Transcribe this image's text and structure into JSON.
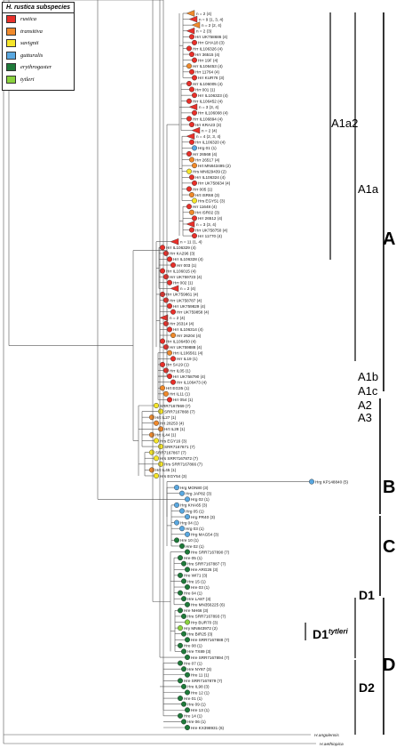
{
  "legend": {
    "title": "H. rustica subspecies",
    "items": [
      {
        "label": "rustica",
        "color": "#e8302a"
      },
      {
        "label": "transitiva",
        "color": "#f08a2c"
      },
      {
        "label": "savignii",
        "color": "#f5e52a"
      },
      {
        "label": "gutturalis",
        "color": "#5aa8e0"
      },
      {
        "label": "erythrogaster",
        "color": "#1e7a3a"
      },
      {
        "label": "tytleri",
        "color": "#8ad23e"
      }
    ]
  },
  "clades": {
    "A": "A",
    "B": "B",
    "C": "C",
    "D": "D",
    "A1a2": "A1a2",
    "A1a": "A1a",
    "A1b": "A1b",
    "A1c": "A1c",
    "A2": "A2",
    "A3": "A3",
    "D1": "D1",
    "D2": "D2",
    "D1t_main": "D1",
    "D1t_sup": "tytleri"
  },
  "outgroups": [
    "H.angolensis",
    "H.aethiopica"
  ],
  "collapsed": [
    "n = 2 (4)",
    "n = 9 (1, 3, 4)",
    "n = 2 (2, 4)",
    "n = 4 (2, 3, 4)",
    "n = 11 (1, 4)"
  ],
  "tips": [
    {
      "label": "n = 2 (4)",
      "c": 1
    },
    {
      "label": "n = 9 (1, 3, 4)",
      "c": 0
    },
    {
      "label": "n = 2 (2, 4)",
      "c": 1
    },
    {
      "label": "n = 2 (3)",
      "c": 0
    },
    {
      "label": "Hrr UK758686 (4)",
      "c": 0
    },
    {
      "label": "Hrr GHA18 (3)",
      "c": 0
    },
    {
      "label": "Hrr IL106326 (4)",
      "c": 0
    },
    {
      "label": "Hrr 36515 (4)",
      "c": 0
    },
    {
      "label": "Hrr 19F (4)",
      "c": 0
    },
    {
      "label": "Hrr IL106453 (4)",
      "c": 1
    },
    {
      "label": "Hrr 11764 (4)",
      "c": 0
    },
    {
      "label": "Hrr KUR76 (3)",
      "c": 0
    },
    {
      "label": "Hrr IL106005 (4)",
      "c": 0
    },
    {
      "label": "Hrr 001 (1)",
      "c": 0
    },
    {
      "label": "Hrr IL106323 (4)",
      "c": 0
    },
    {
      "label": "Hrr IL106452 (4)",
      "c": 0
    },
    {
      "label": "n = 3 (3, 4)",
      "c": 0
    },
    {
      "label": "Hrr IL106008 (4)",
      "c": 0
    },
    {
      "label": "Hrr IL106894 (4)",
      "c": 0
    },
    {
      "label": "Hrr KRA23 (3)",
      "c": 0
    },
    {
      "label": "n = 2 (4)",
      "c": 0
    },
    {
      "label": "n = 4 (2, 3, 4)",
      "c": 0
    },
    {
      "label": "Hrr IL106320 (4)",
      "c": 0
    },
    {
      "label": "Hrg 01 (1)",
      "c": 3
    },
    {
      "label": "Hrr 26568 (4)",
      "c": 0
    },
    {
      "label": "Hrr 26517 (4)",
      "c": 1
    },
    {
      "label": "Hrt MN843495 (2)",
      "c": 1
    },
    {
      "label": "Hrs MN629439 (2)",
      "c": 2
    },
    {
      "label": "Hrr IL106324 (4)",
      "c": 0
    },
    {
      "label": "Hrr UK758634 (4)",
      "c": 0
    },
    {
      "label": "Hrr 005 (1)",
      "c": 0
    },
    {
      "label": "Hrt ISR68 (3)",
      "c": 1
    },
    {
      "label": "Hrs EGY51 (3)",
      "c": 2
    },
    {
      "label": "Hrr 11648 (4)",
      "c": 0
    },
    {
      "label": "Hrt ISR02 (3)",
      "c": 1
    },
    {
      "label": "Hrr 26512 (4)",
      "c": 0
    },
    {
      "label": "n = 3 (3, 4)",
      "c": 0
    },
    {
      "label": "Hrr UK758750 (4)",
      "c": 0
    },
    {
      "label": "Hrr 11770 (4)",
      "c": 0
    },
    {
      "label": "n = 11 (1, 4)",
      "c": 0
    },
    {
      "label": "Hrr IL106329 (4)",
      "c": 0
    },
    {
      "label": "Hrr KA296 (3)",
      "c": 0
    },
    {
      "label": "Hrr IL106328 (4)",
      "c": 0
    },
    {
      "label": "Hrr 003 (1)",
      "c": 0
    },
    {
      "label": "Hrr IL106015 (4)",
      "c": 0
    },
    {
      "label": "Hrr UK759723 (4)",
      "c": 0
    },
    {
      "label": "Hrr 002 (1)",
      "c": 0
    },
    {
      "label": "n = 2 (4)",
      "c": 0
    },
    {
      "label": "Hrr UK759861 (4)",
      "c": 0
    },
    {
      "label": "Hrr UK758787 (4)",
      "c": 0
    },
    {
      "label": "Hrr UK759829 (4)",
      "c": 0
    },
    {
      "label": "Hrr UK759858 (4)",
      "c": 0
    },
    {
      "label": "n = 2 (4)",
      "c": 0
    },
    {
      "label": "Hrr 26314 (4)",
      "c": 0
    },
    {
      "label": "Hrr IL106314 (4)",
      "c": 0
    },
    {
      "label": "Hrr 26204 (4)",
      "c": 1
    },
    {
      "label": "Hrr IL106450 (4)",
      "c": 0
    },
    {
      "label": "Hrr UK759888 (4)",
      "c": 0
    },
    {
      "label": "Hrt IL106561 (4)",
      "c": 1
    },
    {
      "label": "Hrr IL19 (1)",
      "c": 0
    },
    {
      "label": "Hrr SA19 (1)",
      "c": 0
    },
    {
      "label": "Hrr IL05 (1)",
      "c": 0
    },
    {
      "label": "Hrr UK758790 (4)",
      "c": 0
    },
    {
      "label": "Hrr IL106473 (4)",
      "c": 0
    },
    {
      "label": "Hrt EG35 (1)",
      "c": 1
    },
    {
      "label": "Hrt IL11 (1)",
      "c": 1
    },
    {
      "label": "Hrr 054 (1)",
      "c": 0
    },
    {
      "label": "SRR7167869 (7)",
      "c": 2
    },
    {
      "label": "SRR7167868 (7)",
      "c": 2
    },
    {
      "label": "Hrt IL27 (1)",
      "c": 1
    },
    {
      "label": "Hrt 28253 (4)",
      "c": 1
    },
    {
      "label": "Hrt IL28 (1)",
      "c": 1
    },
    {
      "label": "Hrt IL44 (1)",
      "c": 1
    },
    {
      "label": "Hrs EGY16 (3)",
      "c": 2
    },
    {
      "label": "SRR7167871 (7)",
      "c": 2
    },
    {
      "label": "SRR7167867 (7)",
      "c": 2
    },
    {
      "label": "Hrs SRR7167872 (7)",
      "c": 2
    },
    {
      "label": "Hrs SRR7167866 (7)",
      "c": 2
    },
    {
      "label": "Hrt IL45 (1)",
      "c": 1
    },
    {
      "label": "Hrs EGY54 (3)",
      "c": 2
    },
    {
      "label": "Hrg KP148840 (5)",
      "c": 3
    },
    {
      "label": "Hrg MON80 (3)",
      "c": 3
    },
    {
      "label": "Hrg JAP82 (3)",
      "c": 3
    },
    {
      "label": "Hrg 02 (1)",
      "c": 3
    },
    {
      "label": "Hrg KHA65 (3)",
      "c": 3
    },
    {
      "label": "Hrg 05 (1)",
      "c": 3
    },
    {
      "label": "Hrg PR40 (3)",
      "c": 3
    },
    {
      "label": "Hrg 04 (1)",
      "c": 3
    },
    {
      "label": "Hrg 03 (1)",
      "c": 3
    },
    {
      "label": "Hrg MAG54 (3)",
      "c": 3
    },
    {
      "label": "Hre 10 (1)",
      "c": 4
    },
    {
      "label": "Hre 02 (1)",
      "c": 4
    },
    {
      "label": "Hre SRR7167890 (7)",
      "c": 4
    },
    {
      "label": "Hre 05 (1)",
      "c": 4
    },
    {
      "label": "Hre SRR7167887 (7)",
      "c": 4
    },
    {
      "label": "Hre ARG26 (3)",
      "c": 4
    },
    {
      "label": "Hre WI71 (3)",
      "c": 4
    },
    {
      "label": "Hre 15 (1)",
      "c": 4
    },
    {
      "label": "Hre 03 (1)",
      "c": 4
    },
    {
      "label": "Hre 04 (1)",
      "c": 4
    },
    {
      "label": "Hre LA87 (3)",
      "c": 4
    },
    {
      "label": "Hre MN356225 (6)",
      "c": 4
    },
    {
      "label": "Hre NH66 (3)",
      "c": 4
    },
    {
      "label": "Hre SRR7167893 (7)",
      "c": 4
    },
    {
      "label": "Hry BUR70 (3)",
      "c": 5
    },
    {
      "label": "Hry MN843972 (2)",
      "c": 5
    },
    {
      "label": "Hre BIR25 (3)",
      "c": 4
    },
    {
      "label": "Hre SRR7167888 (7)",
      "c": 4
    },
    {
      "label": "Hre 08 (1)",
      "c": 4
    },
    {
      "label": "Hre TX89 (3)",
      "c": 4
    },
    {
      "label": "Hre SRR7167894 (7)",
      "c": 4
    },
    {
      "label": "Hre 07 (1)",
      "c": 4
    },
    {
      "label": "Hre NY87 (3)",
      "c": 4
    },
    {
      "label": "Hre 11 (1)",
      "c": 4
    },
    {
      "label": "Hre SRR7167879 (7)",
      "c": 4
    },
    {
      "label": "Hre IL98 (3)",
      "c": 4
    },
    {
      "label": "Hre 12 (1)",
      "c": 4
    },
    {
      "label": "Hre 01 (1)",
      "c": 4
    },
    {
      "label": "Hre 09 (1)",
      "c": 4
    },
    {
      "label": "Hre 13 (1)",
      "c": 4
    },
    {
      "label": "Hre 14 (1)",
      "c": 4
    },
    {
      "label": "Hre 06 (1)",
      "c": 4
    },
    {
      "label": "Hre KX398931 (6)",
      "c": 4
    }
  ]
}
